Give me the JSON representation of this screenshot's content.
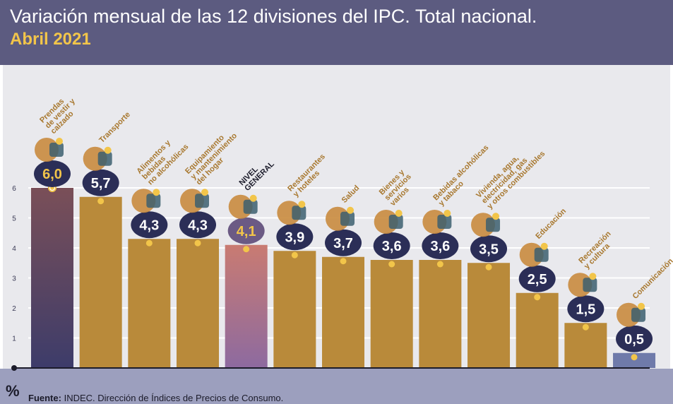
{
  "header": {
    "title": "Variación mensual de las 12 divisiones del IPC. Total nacional.",
    "subtitle": "Abril 2021"
  },
  "footer": {
    "unit_symbol": "%",
    "source_label": "Fuente:",
    "source_text": "INDEC. Dirección de Índices de Precios de Consumo."
  },
  "colors": {
    "header_bg": "#5c5b80",
    "accent_yellow": "#f2c54a",
    "bar_gold": "#b98a3a",
    "label_brown": "#a8782f",
    "bubble_navy": "#2b2e57",
    "general_bar_top": "#c97b72",
    "general_bar_bottom": "#8d6aa0",
    "first_bar_top": "#7a4f58",
    "first_bar_bottom": "#3d3c6a",
    "last_bar": "#6f7aaa"
  },
  "chart_data": {
    "type": "bar",
    "title": "Variación mensual de las 12 divisiones del IPC. Total nacional.",
    "subtitle": "Abril 2021",
    "ylabel": "%",
    "ylim": [
      0,
      6
    ],
    "yticks": [
      0,
      1,
      2,
      3,
      4,
      5,
      6
    ],
    "grid": true,
    "categories": [
      [
        "Prendas",
        "de vestir y",
        "calzado"
      ],
      [
        "Transporte"
      ],
      [
        "Alimentos y",
        "bebidas",
        "no alcohólicas"
      ],
      [
        "Equipamiento",
        "y mantenimiento",
        "del hogar"
      ],
      [
        "NIVEL",
        "GENERAL"
      ],
      [
        "Restaurantes",
        "y hoteles"
      ],
      [
        "Salud"
      ],
      [
        "Bienes y",
        "servicios",
        "varios"
      ],
      [
        "Bebidas alcohólicas",
        "y tabaco"
      ],
      [
        "Vivienda, agua,",
        "electricidad, gas",
        "y otros combustibles"
      ],
      [
        "Educación"
      ],
      [
        "Recreación",
        "y cultura"
      ],
      [
        "Comunicación"
      ]
    ],
    "values": [
      6.0,
      5.7,
      4.3,
      4.3,
      4.1,
      3.9,
      3.7,
      3.6,
      3.6,
      3.5,
      2.5,
      1.5,
      0.5
    ],
    "value_labels": [
      "6,0",
      "5,7",
      "4,3",
      "4,3",
      "4,1",
      "3,9",
      "3,7",
      "3,6",
      "3,6",
      "3,5",
      "2,5",
      "1,5",
      "0,5"
    ],
    "icons": [
      "shirt-icon",
      "bus-card-icon",
      "roast-chicken-icon",
      "washing-machine-icon",
      "shopping-basket-icon",
      "dining-icon",
      "health-cross-icon",
      "comb-scissors-icon",
      "bottle-glass-icon",
      "house-services-icon",
      "books-icon",
      "recreation-sun-icon",
      "phone-icon"
    ],
    "highlight": "NIVEL GENERAL"
  }
}
